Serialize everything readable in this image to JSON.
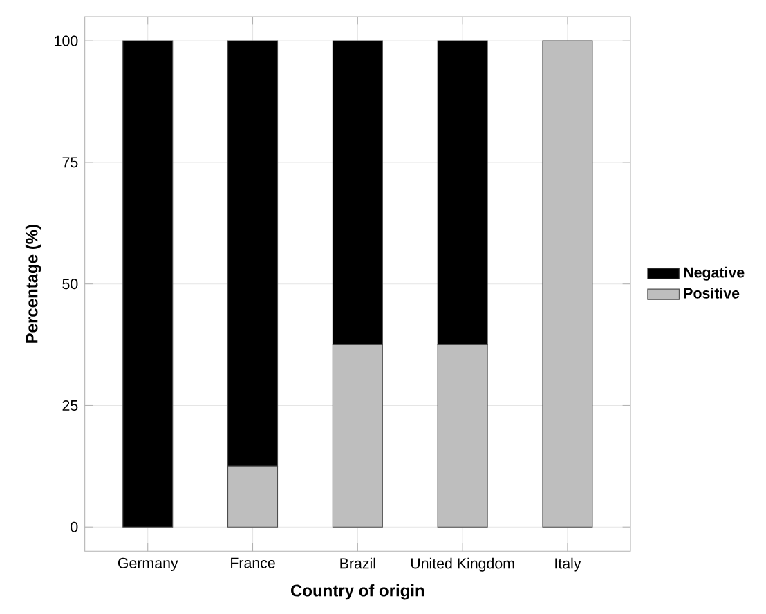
{
  "chart_data": {
    "type": "bar",
    "stacked": true,
    "xlabel": "Country of origin",
    "ylabel": "Percentage (%)",
    "categories": [
      "Germany",
      "France",
      "Brazil",
      "United Kingdom",
      "Italy"
    ],
    "series": [
      {
        "name": "Positive",
        "color": "#bebebe",
        "values": [
          0,
          12.5,
          37.5,
          37.5,
          100
        ]
      },
      {
        "name": "Negative",
        "color": "#000000",
        "values": [
          100,
          87.5,
          62.5,
          62.5,
          0
        ]
      }
    ],
    "ylim": [
      -5,
      105
    ],
    "yticks": [
      0,
      25,
      50,
      75,
      100
    ],
    "grid": true,
    "legend": "right"
  }
}
